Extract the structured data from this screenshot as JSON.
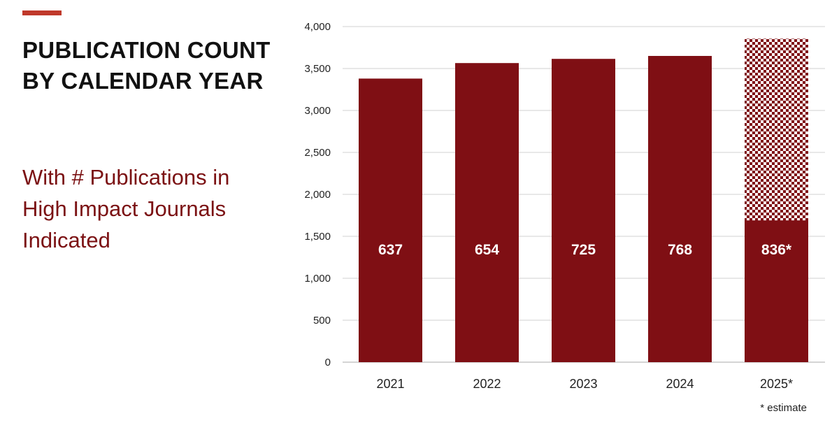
{
  "slide": {
    "title_line1": "PUBLICATION COUNT",
    "title_line2": "BY CALENDAR YEAR",
    "subtitle_line1": "With # Publications in",
    "subtitle_line2": "High Impact Journals",
    "subtitle_line3": "Indicated",
    "footnote": "* estimate"
  },
  "colors": {
    "bar": "#7f0f14",
    "accent": "#c0392b",
    "subtitle": "#7b1113"
  },
  "chart_data": {
    "type": "bar",
    "stacked": true,
    "categories": [
      "2021",
      "2022",
      "2023",
      "2024",
      "2025*"
    ],
    "series": [
      {
        "values": [
          3380,
          3565,
          3615,
          3650,
          3855
        ],
        "label_values": [
          "637",
          "654",
          "725",
          "768",
          "836*"
        ],
        "pattern": [
          "solid",
          "solid",
          "solid",
          "solid",
          "checkered"
        ]
      }
    ],
    "highlight_values": [
      null,
      null,
      null,
      null,
      1690
    ],
    "ylim": [
      0,
      4000
    ],
    "yticks": [
      "0",
      "500",
      "1,000",
      "1,500",
      "2,000",
      "2,500",
      "3,000",
      "3,500",
      "4,000"
    ],
    "grid": true,
    "title": "",
    "xlabel": "",
    "ylabel": ""
  }
}
